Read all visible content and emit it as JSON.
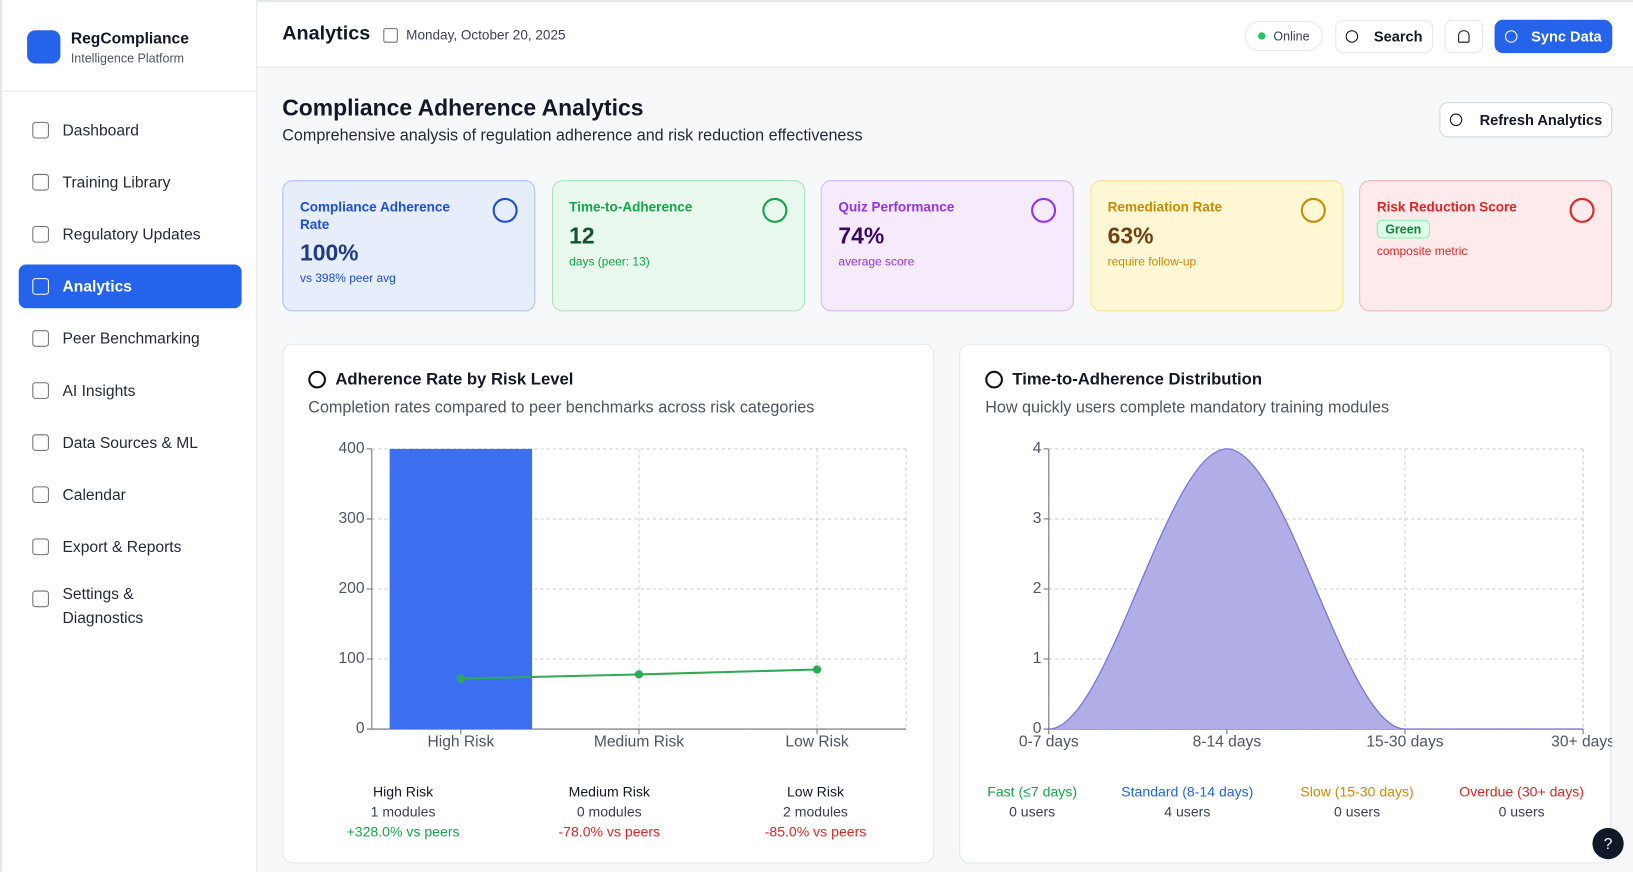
{
  "sidebar": {
    "brand": "RegCompliance",
    "tagline": "Intelligence Platform",
    "nav": [
      "Dashboard",
      "Training Library",
      "Regulatory Updates",
      "Analytics",
      "Peer Benchmarking",
      "AI Insights",
      "Data Sources & ML",
      "Calendar",
      "Export & Reports",
      "Settings & Diagnostics"
    ]
  },
  "header": {
    "title": "Analytics",
    "date": "Monday, October 20, 2025",
    "status": "Online",
    "search": "Search",
    "sync": "Sync Data"
  },
  "page": {
    "title": "Compliance Adherence Analytics",
    "subtitle": "Comprehensive analysis of regulation adherence and risk reduction effectiveness",
    "refresh": "Refresh Analytics"
  },
  "kpis": [
    {
      "label": "Compliance Adherence Rate",
      "value": "100%",
      "note": "vs 398% peer avg"
    },
    {
      "label": "Time-to-Adherence",
      "value": "12",
      "note": "days (peer: 13)"
    },
    {
      "label": "Quiz Performance",
      "value": "74%",
      "note": "average score"
    },
    {
      "label": "Remediation Rate",
      "value": "63%",
      "note": "require follow-up"
    },
    {
      "label": "Risk Reduction Score",
      "badge": "Green",
      "note": "composite metric"
    }
  ],
  "chart_data": [
    {
      "type": "bar",
      "title": "Adherence Rate by Risk Level",
      "subtitle": "Completion rates compared to peer benchmarks across risk categories",
      "categories": [
        "High Risk",
        "Medium Risk",
        "Low Risk"
      ],
      "series": [
        {
          "type": "bar",
          "color": "#3b6ff0",
          "values": [
            400,
            0,
            0
          ]
        },
        {
          "type": "line",
          "color": "#2eaa55",
          "values": [
            72,
            78,
            85
          ]
        }
      ],
      "ylim": [
        0,
        400
      ],
      "yticks": [
        0,
        100,
        200,
        300,
        400
      ],
      "grid": true,
      "summary": [
        {
          "name": "High Risk",
          "count": "1 modules",
          "delta": "+328.0% vs peers"
        },
        {
          "name": "Medium Risk",
          "count": "0 modules",
          "delta": "-78.0% vs peers"
        },
        {
          "name": "Low Risk",
          "count": "2 modules",
          "delta": "-85.0% vs peers"
        }
      ]
    },
    {
      "type": "area",
      "title": "Time-to-Adherence Distribution",
      "subtitle": "How quickly users complete mandatory training modules",
      "categories": [
        "0-7 days",
        "8-14 days",
        "15-30 days",
        "30+ days"
      ],
      "values": [
        0,
        4,
        0,
        0
      ],
      "color": "#b1ade6",
      "line_color": "#7b72d8",
      "ylim": [
        0,
        4
      ],
      "yticks": [
        0,
        1,
        2,
        3,
        4
      ],
      "grid": true,
      "summary": [
        {
          "name": "Fast (≤7 days)",
          "count": "0 users"
        },
        {
          "name": "Standard (8-14 days)",
          "count": "4 users"
        },
        {
          "name": "Slow (15-30 days)",
          "count": "0 users"
        },
        {
          "name": "Overdue (30+ days)",
          "count": "0 users"
        }
      ]
    }
  ]
}
